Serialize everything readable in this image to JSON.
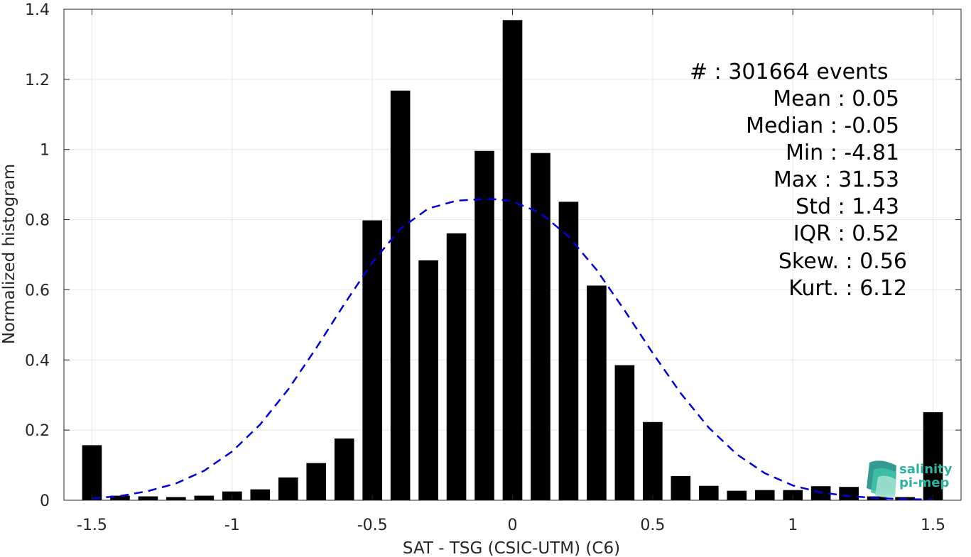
{
  "chart_data": {
    "type": "bar",
    "xlabel": "SAT - TSG (CSIC-UTM) (C6)",
    "ylabel": "Normalized histogram",
    "xlim": [
      -1.6,
      1.6
    ],
    "ylim": [
      0,
      1.4
    ],
    "xticks": [
      -1.5,
      -1,
      -0.5,
      0,
      0.5,
      1,
      1.5
    ],
    "xtick_labels": [
      "-1.5",
      "-1",
      "-0.5",
      "0",
      "0.5",
      "1",
      "1.5"
    ],
    "yticks": [
      0,
      0.2,
      0.4,
      0.6,
      0.8,
      1,
      1.2,
      1.4
    ],
    "ytick_labels": [
      "0",
      "0.2",
      "0.4",
      "0.6",
      "0.8",
      "1",
      "1.2",
      "1.4"
    ],
    "grid": true,
    "bin_width": 0.1,
    "bars": {
      "x": [
        -1.5,
        -1.4,
        -1.3,
        -1.2,
        -1.1,
        -1.0,
        -0.9,
        -0.8,
        -0.7,
        -0.6,
        -0.5,
        -0.4,
        -0.3,
        -0.2,
        -0.1,
        0.0,
        0.1,
        0.2,
        0.3,
        0.4,
        0.5,
        0.6,
        0.7,
        0.8,
        0.9,
        1.0,
        1.1,
        1.2,
        1.3,
        1.4,
        1.5
      ],
      "values": [
        0.157,
        0.013,
        0.011,
        0.009,
        0.013,
        0.025,
        0.031,
        0.065,
        0.106,
        0.176,
        0.798,
        1.168,
        0.684,
        0.761,
        0.996,
        1.369,
        0.99,
        0.851,
        0.612,
        0.385,
        0.223,
        0.069,
        0.041,
        0.027,
        0.029,
        0.029,
        0.04,
        0.038,
        0.011,
        0.009,
        0.251
      ],
      "color": "#000000"
    },
    "fit_curve": {
      "style": "dashed",
      "color": "#0000dd",
      "x": [
        -1.5,
        -1.4,
        -1.3,
        -1.2,
        -1.1,
        -1.0,
        -0.9,
        -0.8,
        -0.7,
        -0.6,
        -0.5,
        -0.4,
        -0.3,
        -0.2,
        -0.1,
        -0.05,
        0.0,
        0.1,
        0.2,
        0.3,
        0.4,
        0.5,
        0.6,
        0.7,
        0.8,
        0.9,
        1.0,
        1.1,
        1.2,
        1.3,
        1.4,
        1.5
      ],
      "y": [
        0.005,
        0.012,
        0.026,
        0.048,
        0.084,
        0.139,
        0.216,
        0.316,
        0.434,
        0.559,
        0.678,
        0.774,
        0.832,
        0.854,
        0.859,
        0.858,
        0.852,
        0.819,
        0.752,
        0.657,
        0.541,
        0.42,
        0.305,
        0.207,
        0.131,
        0.077,
        0.042,
        0.022,
        0.012,
        0.006,
        0.003,
        0.002
      ]
    },
    "stats": {
      "events": "#  : 301664 events",
      "mean": "Mean : 0.05",
      "median": "Median : -0.05",
      "min": "Min : -4.81",
      "max": "Max : 31.53",
      "std": "Std : 1.43",
      "iqr": "IQR : 0.52",
      "skew": "Skew. : 0.56",
      "kurt": "Kurt. : 6.12"
    }
  },
  "logo": {
    "line1": "salinity",
    "line2": "pi-mep",
    "color": "#2bb3a0"
  }
}
